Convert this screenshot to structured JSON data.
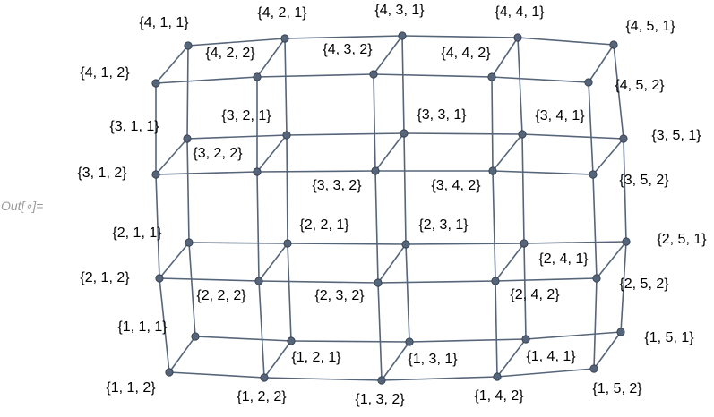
{
  "output_prompt": "Out[∘]=",
  "graph": {
    "edge_color": "#56657a",
    "vertex_color": "#56657a",
    "vertices": [
      {
        "id": "111",
        "label": "{1, 1, 1}"
      },
      {
        "id": "112",
        "label": "{1, 1, 2}"
      },
      {
        "id": "121",
        "label": "{1, 2, 1}"
      },
      {
        "id": "122",
        "label": "{1, 2, 2}"
      },
      {
        "id": "131",
        "label": "{1, 3, 1}"
      },
      {
        "id": "132",
        "label": "{1, 3, 2}"
      },
      {
        "id": "141",
        "label": "{1, 4, 1}"
      },
      {
        "id": "142",
        "label": "{1, 4, 2}"
      },
      {
        "id": "151",
        "label": "{1, 5, 1}"
      },
      {
        "id": "152",
        "label": "{1, 5, 2}"
      },
      {
        "id": "211",
        "label": "{2, 1, 1}"
      },
      {
        "id": "212",
        "label": "{2, 1, 2}"
      },
      {
        "id": "221",
        "label": "{2, 2, 1}"
      },
      {
        "id": "222",
        "label": "{2, 2, 2}"
      },
      {
        "id": "231",
        "label": "{2, 3, 1}"
      },
      {
        "id": "232",
        "label": "{2, 3, 2}"
      },
      {
        "id": "241",
        "label": "{2, 4, 1}"
      },
      {
        "id": "242",
        "label": "{2, 4, 2}"
      },
      {
        "id": "251",
        "label": "{2, 5, 1}"
      },
      {
        "id": "252",
        "label": "{2, 5, 2}"
      },
      {
        "id": "311",
        "label": "{3, 1, 1}"
      },
      {
        "id": "312",
        "label": "{3, 1, 2}"
      },
      {
        "id": "321",
        "label": "{3, 2, 1}"
      },
      {
        "id": "322",
        "label": "{3, 2, 2}"
      },
      {
        "id": "331",
        "label": "{3, 3, 1}"
      },
      {
        "id": "332",
        "label": "{3, 3, 2}"
      },
      {
        "id": "341",
        "label": "{3, 4, 1}"
      },
      {
        "id": "342",
        "label": "{3, 4, 2}"
      },
      {
        "id": "351",
        "label": "{3, 5, 1}"
      },
      {
        "id": "352",
        "label": "{3, 5, 2}"
      },
      {
        "id": "411",
        "label": "{4, 1, 1}"
      },
      {
        "id": "412",
        "label": "{4, 1, 2}"
      },
      {
        "id": "421",
        "label": "{4, 2, 1}"
      },
      {
        "id": "422",
        "label": "{4, 2, 2}"
      },
      {
        "id": "431",
        "label": "{4, 3, 1}"
      },
      {
        "id": "432",
        "label": "{4, 3, 2}"
      },
      {
        "id": "441",
        "label": "{4, 4, 1}"
      },
      {
        "id": "442",
        "label": "{4, 4, 2}"
      },
      {
        "id": "451",
        "label": "{4, 5, 1}"
      },
      {
        "id": "452",
        "label": "{4, 5, 2}"
      }
    ]
  }
}
